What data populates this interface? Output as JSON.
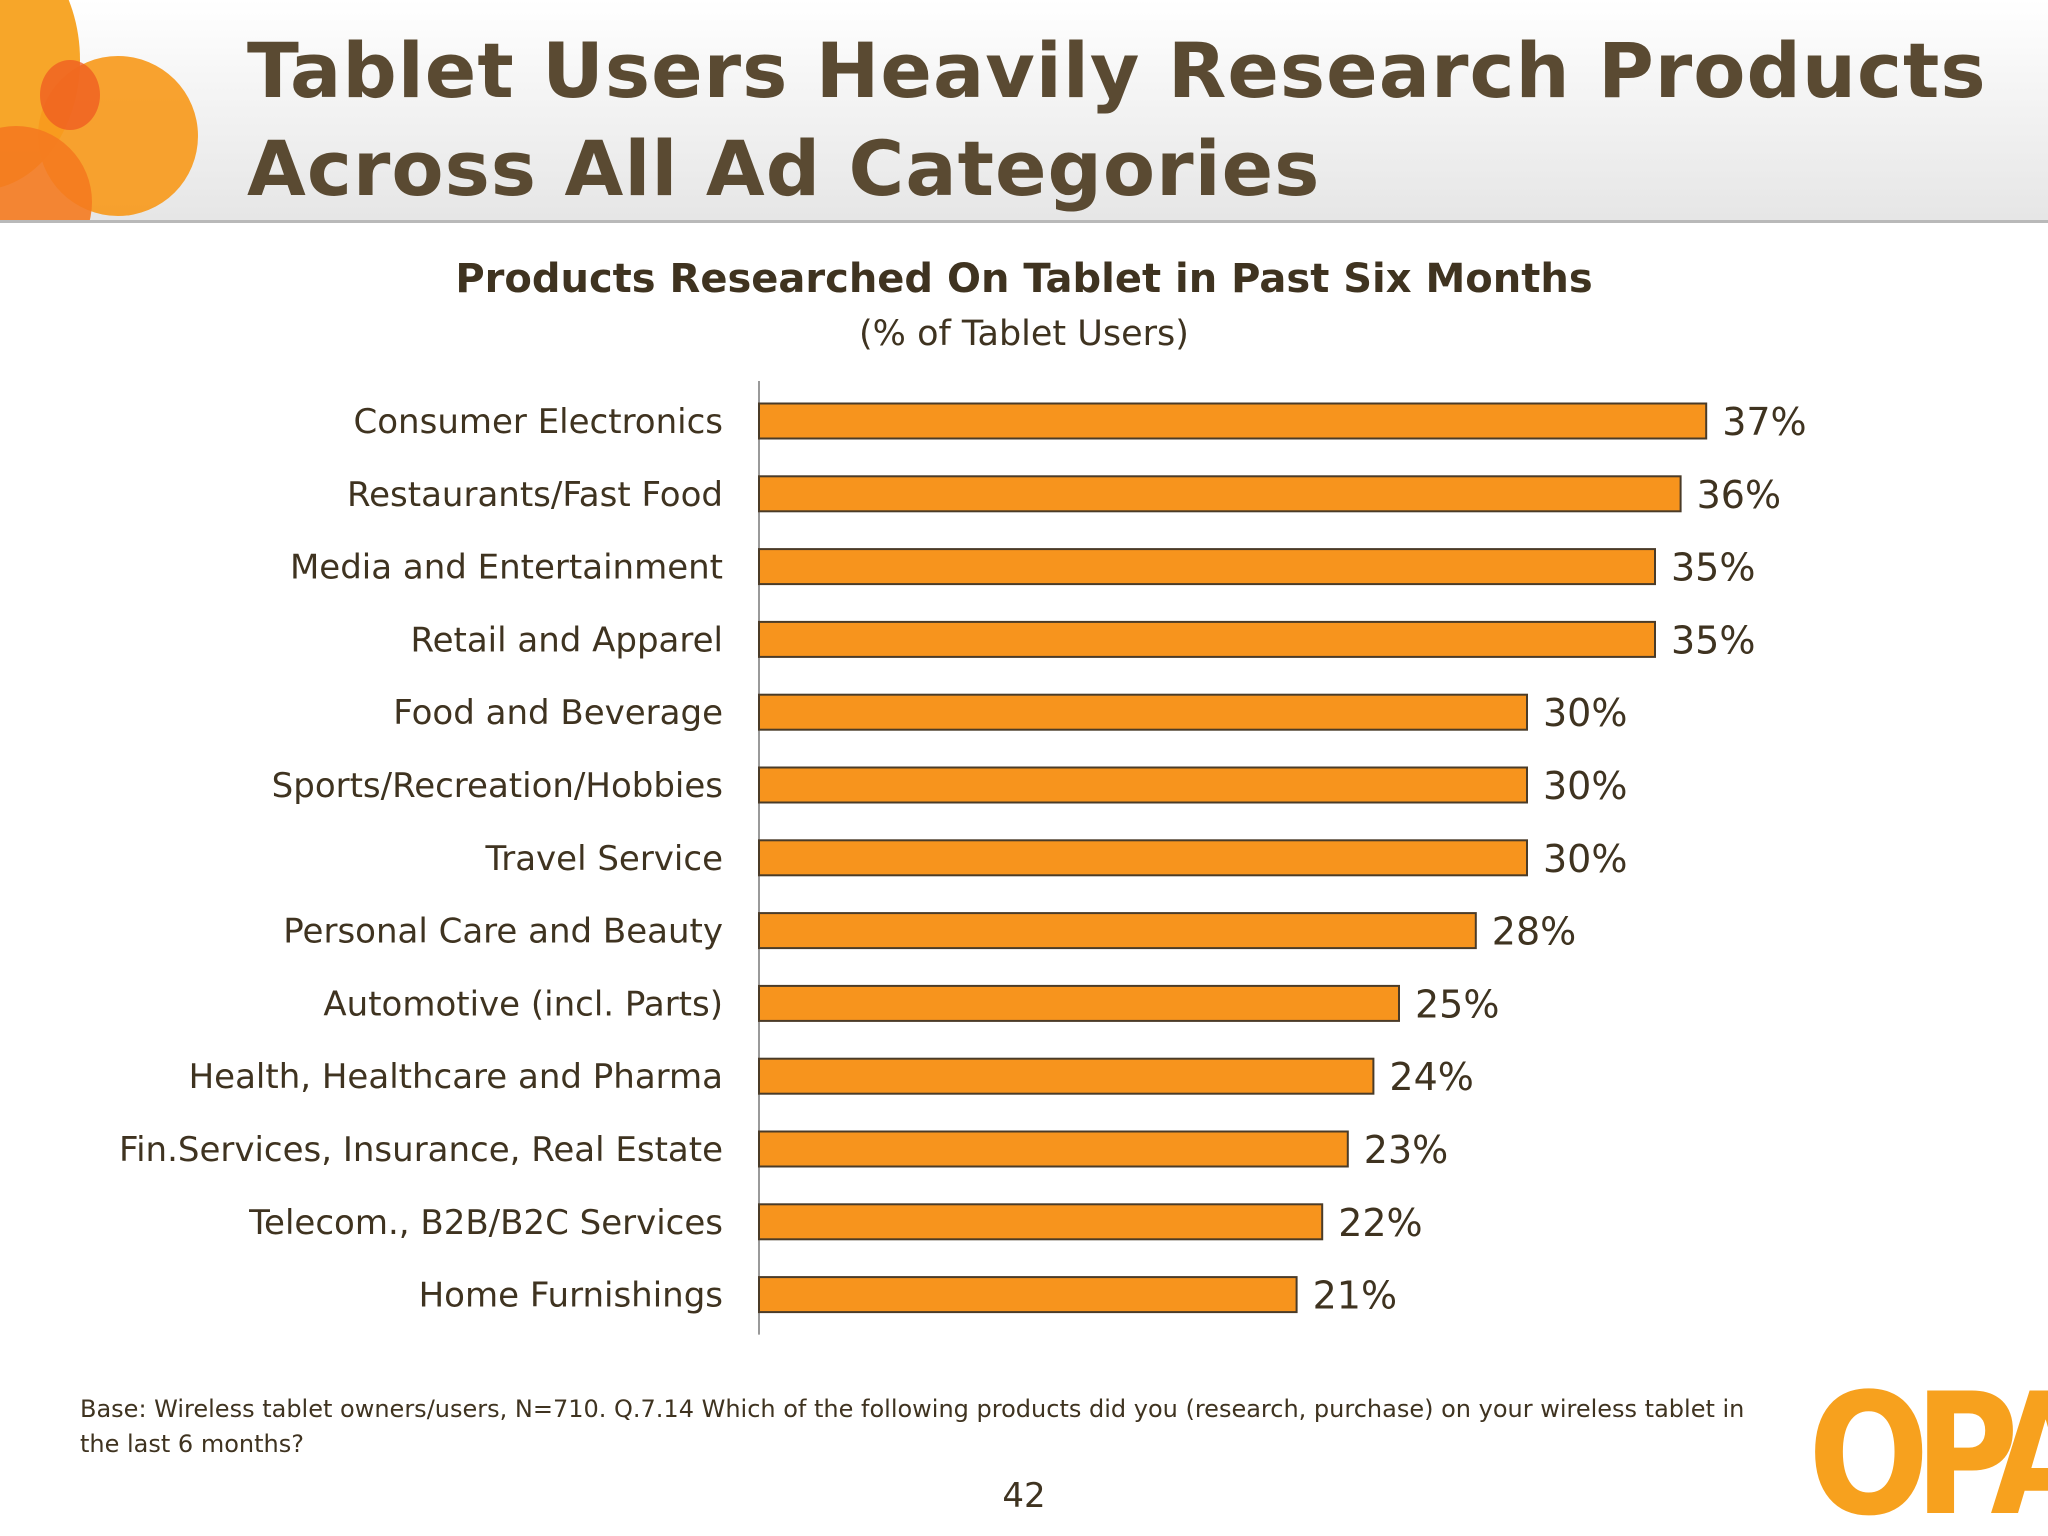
{
  "header": {
    "title_line1": "Tablet Users Heavily Research Products",
    "title_line2": "Across All Ad Categories"
  },
  "colors": {
    "bar_fill": "#f7941d",
    "bar_stroke": "#4a3b28",
    "text": "#3f3320",
    "title": "#5a4a32",
    "accent": "#f7a11e"
  },
  "chart_data": {
    "type": "bar",
    "orientation": "horizontal",
    "title": "Products Researched On Tablet in Past Six Months",
    "subtitle": "(% of Tablet Users)",
    "xlabel": "",
    "ylabel": "",
    "unit": "%",
    "xlim": [
      0,
      40
    ],
    "grid": false,
    "legend": "none",
    "categories": [
      "Consumer Electronics",
      "Restaurants/Fast Food",
      "Media and Entertainment",
      "Retail and Apparel",
      "Food and Beverage",
      "Sports/Recreation/Hobbies",
      "Travel Service",
      "Personal Care and Beauty",
      "Automotive (incl. Parts)",
      "Health, Healthcare and Pharma",
      "Fin.Services, Insurance, Real Estate",
      "Telecom., B2B/B2C Services",
      "Home Furnishings"
    ],
    "values": [
      37,
      36,
      35,
      35,
      30,
      30,
      30,
      28,
      25,
      24,
      23,
      22,
      21
    ],
    "value_labels": [
      "37%",
      "36%",
      "35%",
      "35%",
      "30%",
      "30%",
      "30%",
      "28%",
      "25%",
      "24%",
      "23%",
      "22%",
      "21%"
    ]
  },
  "footnote": "Base:  Wireless tablet owners/users, N=710. Q.7.14 Which of the following products did you (research, purchase) on your wireless tablet in the last 6 months?",
  "page_number": "42",
  "logo": {
    "text": "OPA",
    "icon": "opa-logo"
  }
}
